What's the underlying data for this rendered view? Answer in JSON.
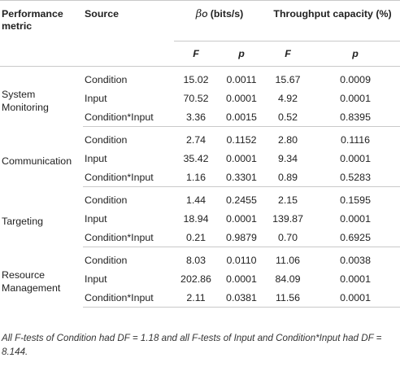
{
  "headers": {
    "metric": "Performance metric",
    "source": "Source",
    "beta_symbol": "β",
    "beta_subscript": "O",
    "beta_unit": "(bits/s)",
    "throughput": "Throughput capacity (%)",
    "f": "F",
    "p": "p"
  },
  "groups": [
    {
      "metric": "System Monitoring",
      "rows": [
        {
          "source": "Condition",
          "beta_f": "15.02",
          "beta_p": "0.0011",
          "tc_f": "15.67",
          "tc_p": "0.0009"
        },
        {
          "source": "Input",
          "beta_f": "70.52",
          "beta_p": "0.0001",
          "tc_f": "4.92",
          "tc_p": "0.0001"
        },
        {
          "source": "Condition*Input",
          "beta_f": "3.36",
          "beta_p": "0.0015",
          "tc_f": "0.52",
          "tc_p": "0.8395"
        }
      ]
    },
    {
      "metric": "Communication",
      "rows": [
        {
          "source": "Condition",
          "beta_f": "2.74",
          "beta_p": "0.1152",
          "tc_f": "2.80",
          "tc_p": "0.1116"
        },
        {
          "source": "Input",
          "beta_f": "35.42",
          "beta_p": "0.0001",
          "tc_f": "9.34",
          "tc_p": "0.0001"
        },
        {
          "source": "Condition*Input",
          "beta_f": "1.16",
          "beta_p": "0.3301",
          "tc_f": "0.89",
          "tc_p": "0.5283"
        }
      ]
    },
    {
      "metric": "Targeting",
      "rows": [
        {
          "source": "Condition",
          "beta_f": "1.44",
          "beta_p": "0.2455",
          "tc_f": "2.15",
          "tc_p": "0.1595"
        },
        {
          "source": "Input",
          "beta_f": "18.94",
          "beta_p": "0.0001",
          "tc_f": "139.87",
          "tc_p": "0.0001"
        },
        {
          "source": "Condition*Input",
          "beta_f": "0.21",
          "beta_p": "0.9879",
          "tc_f": "0.70",
          "tc_p": "0.6925"
        }
      ]
    },
    {
      "metric": "Resource Management",
      "rows": [
        {
          "source": "Condition",
          "beta_f": "8.03",
          "beta_p": "0.0110",
          "tc_f": "11.06",
          "tc_p": "0.0038"
        },
        {
          "source": "Input",
          "beta_f": "202.86",
          "beta_p": "0.0001",
          "tc_f": "84.09",
          "tc_p": "0.0001"
        },
        {
          "source": "Condition*Input",
          "beta_f": "2.11",
          "beta_p": "0.0381",
          "tc_f": "11.56",
          "tc_p": "0.0001"
        }
      ]
    }
  ],
  "footnote": "All F-tests of Condition had DF = 1.18 and all F-tests of Input and Condition*Input had DF = 8.144."
}
